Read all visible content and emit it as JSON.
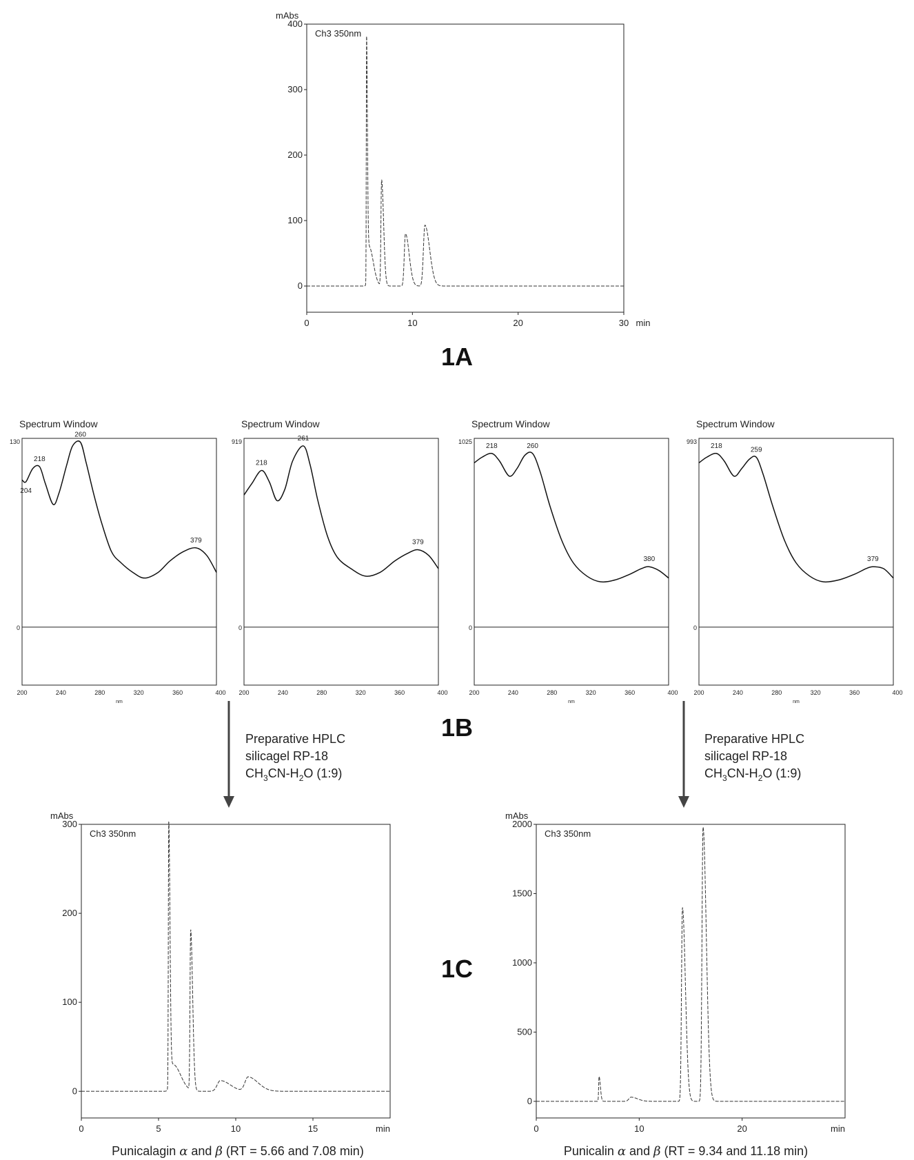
{
  "chart_data": [
    {
      "id": "chrom_1A",
      "type": "line",
      "ylabel": "mAbs",
      "channel": "Ch3 350nm",
      "x_unit": "min",
      "xlim": [
        0,
        30
      ],
      "ylim": [
        -40,
        400
      ],
      "xticks": [
        0,
        10,
        20,
        30
      ],
      "yticks": [
        0,
        100,
        200,
        300,
        400
      ],
      "peaks": [
        {
          "x": 5.66,
          "height": 375,
          "width": 0.05
        },
        {
          "x": 5.9,
          "height": 60,
          "width": 0.25
        },
        {
          "x": 7.08,
          "height": 162,
          "width": 0.12
        },
        {
          "x": 9.34,
          "height": 80,
          "width": 0.22
        },
        {
          "x": 11.18,
          "height": 93,
          "width": 0.28
        }
      ],
      "baseline_end": 0
    },
    {
      "id": "spec_1",
      "type": "line",
      "title": "Spectrum Window",
      "x_unit": "nm",
      "xlim": [
        200,
        400
      ],
      "xticks": [
        200,
        240,
        280,
        320,
        360,
        400
      ],
      "ymax_label": "130",
      "zero_label": "0",
      "points": [
        [
          200,
          0.78
        ],
        [
          204,
          0.77
        ],
        [
          211,
          0.84
        ],
        [
          218,
          0.85
        ],
        [
          224,
          0.76
        ],
        [
          232,
          0.65
        ],
        [
          238,
          0.71
        ],
        [
          246,
          0.86
        ],
        [
          252,
          0.96
        ],
        [
          260,
          0.98
        ],
        [
          266,
          0.87
        ],
        [
          274,
          0.7
        ],
        [
          282,
          0.55
        ],
        [
          292,
          0.4
        ],
        [
          302,
          0.34
        ],
        [
          314,
          0.29
        ],
        [
          326,
          0.26
        ],
        [
          340,
          0.29
        ],
        [
          352,
          0.35
        ],
        [
          366,
          0.4
        ],
        [
          379,
          0.42
        ],
        [
          390,
          0.38
        ],
        [
          400,
          0.29
        ]
      ],
      "labels": [
        {
          "x": 218,
          "text": "218"
        },
        {
          "x": 204,
          "text": "204",
          "below": true
        },
        {
          "x": 260,
          "text": "260"
        },
        {
          "x": 379,
          "text": "379"
        }
      ]
    },
    {
      "id": "spec_2",
      "type": "line",
      "title": "Spectrum Window",
      "x_unit": "",
      "xlim": [
        200,
        400
      ],
      "xticks": [
        200,
        240,
        280,
        320,
        360,
        400
      ],
      "ymax_label": "919",
      "zero_label": "0",
      "points": [
        [
          200,
          0.7
        ],
        [
          208,
          0.76
        ],
        [
          218,
          0.83
        ],
        [
          226,
          0.77
        ],
        [
          234,
          0.67
        ],
        [
          242,
          0.73
        ],
        [
          250,
          0.88
        ],
        [
          261,
          0.96
        ],
        [
          268,
          0.86
        ],
        [
          276,
          0.67
        ],
        [
          286,
          0.48
        ],
        [
          296,
          0.37
        ],
        [
          310,
          0.31
        ],
        [
          325,
          0.27
        ],
        [
          340,
          0.29
        ],
        [
          355,
          0.35
        ],
        [
          368,
          0.39
        ],
        [
          379,
          0.41
        ],
        [
          390,
          0.38
        ],
        [
          400,
          0.31
        ]
      ],
      "labels": [
        {
          "x": 218,
          "text": "218"
        },
        {
          "x": 261,
          "text": "261"
        },
        {
          "x": 379,
          "text": "379"
        }
      ]
    },
    {
      "id": "spec_3",
      "type": "line",
      "title": "Spectrum Window",
      "x_unit": "nm",
      "xlim": [
        200,
        400
      ],
      "xticks": [
        200,
        240,
        280,
        320,
        360,
        400
      ],
      "ymax_label": "1025",
      "zero_label": "0",
      "points": [
        [
          200,
          0.87
        ],
        [
          208,
          0.9
        ],
        [
          218,
          0.92
        ],
        [
          226,
          0.88
        ],
        [
          236,
          0.8
        ],
        [
          244,
          0.84
        ],
        [
          252,
          0.91
        ],
        [
          260,
          0.92
        ],
        [
          268,
          0.82
        ],
        [
          278,
          0.64
        ],
        [
          290,
          0.46
        ],
        [
          302,
          0.34
        ],
        [
          316,
          0.27
        ],
        [
          330,
          0.24
        ],
        [
          345,
          0.25
        ],
        [
          360,
          0.28
        ],
        [
          372,
          0.31
        ],
        [
          380,
          0.32
        ],
        [
          390,
          0.3
        ],
        [
          400,
          0.26
        ]
      ],
      "labels": [
        {
          "x": 218,
          "text": "218"
        },
        {
          "x": 260,
          "text": "260"
        },
        {
          "x": 380,
          "text": "380"
        }
      ]
    },
    {
      "id": "spec_4",
      "type": "line",
      "title": "Spectrum Window",
      "x_unit": "nm",
      "xlim": [
        200,
        400
      ],
      "xticks": [
        200,
        240,
        280,
        320,
        360,
        400
      ],
      "ymax_label": "993",
      "zero_label": "0",
      "points": [
        [
          200,
          0.87
        ],
        [
          208,
          0.9
        ],
        [
          218,
          0.92
        ],
        [
          226,
          0.88
        ],
        [
          236,
          0.8
        ],
        [
          244,
          0.84
        ],
        [
          252,
          0.89
        ],
        [
          259,
          0.9
        ],
        [
          266,
          0.81
        ],
        [
          276,
          0.64
        ],
        [
          288,
          0.46
        ],
        [
          300,
          0.34
        ],
        [
          314,
          0.27
        ],
        [
          328,
          0.24
        ],
        [
          344,
          0.25
        ],
        [
          360,
          0.28
        ],
        [
          372,
          0.31
        ],
        [
          379,
          0.32
        ],
        [
          390,
          0.31
        ],
        [
          400,
          0.26
        ]
      ],
      "labels": [
        {
          "x": 218,
          "text": "218"
        },
        {
          "x": 259,
          "text": "259"
        },
        {
          "x": 379,
          "text": "379"
        }
      ]
    },
    {
      "id": "chrom_1C_left",
      "type": "line",
      "ylabel": "mAbs",
      "channel": "Ch3 350nm",
      "x_unit": "min",
      "xlim": [
        0,
        20
      ],
      "ylim": [
        -30,
        300
      ],
      "xticks": [
        0,
        5,
        10,
        15
      ],
      "yticks": [
        0,
        100,
        200,
        300
      ],
      "peaks": [
        {
          "x": 5.66,
          "height": 300,
          "width": 0.05
        },
        {
          "x": 5.95,
          "height": 30,
          "width": 0.3
        },
        {
          "x": 7.08,
          "height": 180,
          "width": 0.08
        },
        {
          "x": 9.0,
          "height": 12,
          "width": 0.4
        },
        {
          "x": 10.8,
          "height": 16,
          "width": 0.4
        }
      ],
      "baseline_end": 0
    },
    {
      "id": "chrom_1C_right",
      "type": "line",
      "ylabel": "mAbs",
      "channel": "Ch3 350nm",
      "x_unit": "min",
      "xlim": [
        0,
        30
      ],
      "ylim": [
        -120,
        2000
      ],
      "xticks": [
        0,
        10,
        20
      ],
      "yticks": [
        0,
        500,
        1000,
        1500,
        2000
      ],
      "peaks": [
        {
          "x": 6.1,
          "height": 180,
          "width": 0.08
        },
        {
          "x": 9.2,
          "height": 30,
          "width": 0.4
        },
        {
          "x": 14.2,
          "height": 1400,
          "width": 0.18
        },
        {
          "x": 16.2,
          "height": 1980,
          "width": 0.2
        }
      ],
      "baseline_end": 0
    }
  ],
  "labels": {
    "panel_1A": "1A",
    "panel_1B": "1B",
    "panel_1C": "1C"
  },
  "notes": {
    "left": {
      "line1": "Preparative HPLC",
      "line2": "silicagel RP-18",
      "line3_a": "CH",
      "line3_b": "3",
      "line3_c": "CN-H",
      "line3_d": "2",
      "line3_e": "O (1:9)"
    },
    "right": {
      "line1": "Preparative HPLC",
      "line2": "silicagel RP-18",
      "line3_a": "CH",
      "line3_b": "3",
      "line3_c": "CN-H",
      "line3_d": "2",
      "line3_e": "O (1:9)"
    }
  },
  "captions": {
    "left_name": "Punicalagin ",
    "left_alpha": "α",
    "left_mid": " and ",
    "left_beta": "β",
    "left_rt": " (RT = 5.66 and 7.08 min)",
    "right_name": "Punicalin ",
    "right_alpha": "α",
    "right_mid": " and ",
    "right_beta": "β",
    "right_rt": " (RT = 9.34 and 11.18 min)"
  }
}
